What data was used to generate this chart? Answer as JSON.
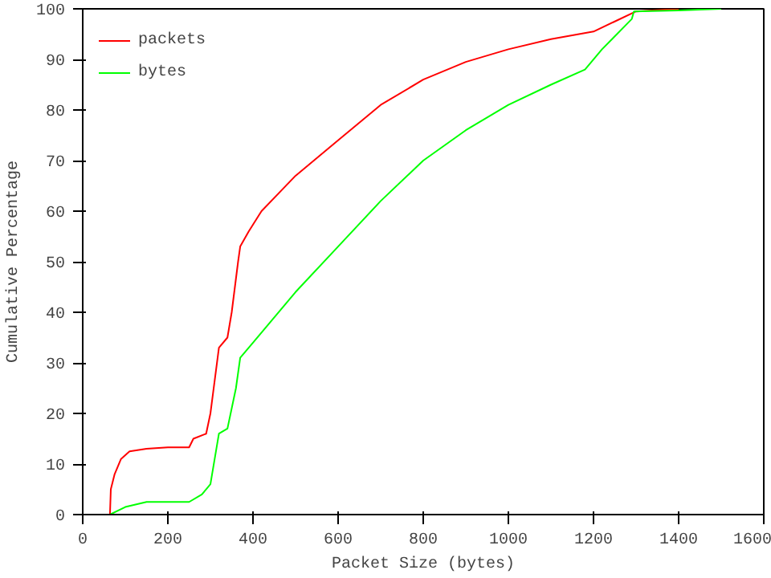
{
  "chart_data": {
    "type": "line",
    "xlabel": "Packet Size (bytes)",
    "ylabel": "Cumulative Percentage",
    "xlim": [
      0,
      1600
    ],
    "ylim": [
      0,
      100
    ],
    "xticks": [
      0,
      200,
      400,
      600,
      800,
      1000,
      1200,
      1400,
      1600
    ],
    "yticks": [
      0,
      10,
      20,
      30,
      40,
      50,
      60,
      70,
      80,
      90,
      100
    ],
    "legend": "top left",
    "grid": false,
    "series": [
      {
        "name": "packets",
        "color": "#ff0000",
        "x": [
          64,
          66,
          75,
          90,
          110,
          150,
          200,
          250,
          260,
          290,
          300,
          320,
          340,
          350,
          365,
          370,
          390,
          420,
          500,
          600,
          700,
          800,
          900,
          1000,
          1100,
          1200,
          1250,
          1300,
          1400
        ],
        "values": [
          0,
          5,
          8,
          11,
          12.5,
          13,
          13.3,
          13.3,
          15,
          16,
          20,
          33,
          35,
          40,
          50,
          53,
          56,
          60,
          67,
          74,
          81,
          86,
          89.5,
          92,
          94,
          95.5,
          97.5,
          99.5,
          100
        ]
      },
      {
        "name": "bytes",
        "color": "#00ff00",
        "x": [
          64,
          100,
          150,
          200,
          250,
          280,
          300,
          320,
          340,
          360,
          370,
          400,
          500,
          600,
          700,
          800,
          900,
          1000,
          1100,
          1180,
          1220,
          1290,
          1295,
          1400,
          1500
        ],
        "values": [
          0,
          1.5,
          2.5,
          2.5,
          2.5,
          4,
          6,
          16,
          17,
          25,
          31,
          34,
          44,
          53,
          62,
          70,
          76,
          81,
          85,
          88,
          92,
          98,
          99.5,
          99.7,
          100
        ]
      }
    ]
  }
}
